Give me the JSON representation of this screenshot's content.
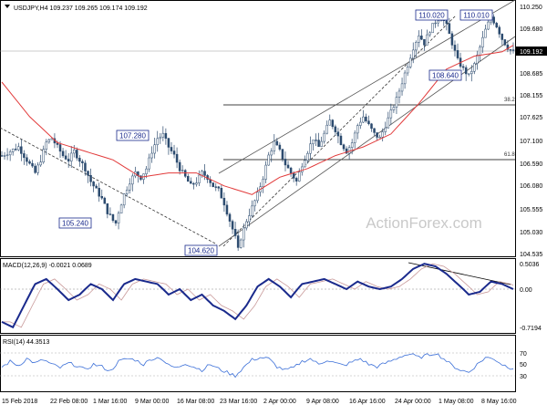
{
  "header": {
    "symbol_line": "USDJPY,H4  109.237 109.265 109.174 109.192"
  },
  "watermark": "ActionForex.com",
  "colors": {
    "candle": "#2b4a6e",
    "ma": "#e23b3b",
    "macd_main": "#1a2a8c",
    "macd_signal": "#c99a9a",
    "rsi": "#3b6fd8",
    "channel": "#606060",
    "fib_line": "#404040",
    "current_price_label_bg": "#000000"
  },
  "main_panel": {
    "price_labels": [
      "110.250",
      "109.680",
      "109.192",
      "108.685",
      "108.155",
      "107.625",
      "107.100",
      "106.590",
      "106.080",
      "105.555",
      "105.030",
      "104.535"
    ],
    "current_price": "109.192",
    "annotations": {
      "high1": "110.020",
      "high2": "110.010",
      "mid_low": "108.640",
      "swing_high": "107.280",
      "swing_low1": "105.240",
      "swing_low2": "104.620"
    },
    "fib_382": "38.2",
    "fib_618": "61.8"
  },
  "macd_panel": {
    "title": "MACD(12,26,9) -0.0021 0.0689",
    "labels": [
      "0.5036",
      "0.00",
      "-0.7194"
    ]
  },
  "rsi_panel": {
    "title": "RSI(14) 44.3513",
    "labels": [
      "70",
      "50",
      "30"
    ]
  },
  "time_axis": {
    "labels": [
      "15 Feb 2018",
      "22 Feb 08:00",
      "1 Mar 16:00",
      "9 Mar 00:00",
      "16 Mar 08:00",
      "23 Mar 16:00",
      "2 Apr 00:00",
      "9 Apr 08:00",
      "16 Apr 16:00",
      "24 Apr 00:00",
      "1 May 08:00",
      "8 May 16:00"
    ]
  },
  "chart_data": {
    "type": "candlestick",
    "symbol": "USDJPY",
    "timeframe": "H4",
    "close_path": [
      [
        0,
        106.8
      ],
      [
        3,
        106.9
      ],
      [
        6,
        107.0
      ],
      [
        8,
        106.8
      ],
      [
        10,
        106.6
      ],
      [
        12,
        106.4
      ],
      [
        14,
        106.7
      ],
      [
        16,
        107.1
      ],
      [
        18,
        107.2
      ],
      [
        20,
        107.0
      ],
      [
        22,
        106.8
      ],
      [
        24,
        106.7
      ],
      [
        26,
        106.9
      ],
      [
        28,
        106.7
      ],
      [
        30,
        106.5
      ],
      [
        32,
        106.2
      ],
      [
        34,
        106.0
      ],
      [
        36,
        105.8
      ],
      [
        38,
        105.5
      ],
      [
        40,
        105.3
      ],
      [
        41,
        105.24
      ],
      [
        42,
        105.5
      ],
      [
        44,
        105.9
      ],
      [
        46,
        106.2
      ],
      [
        48,
        106.4
      ],
      [
        50,
        106.3
      ],
      [
        52,
        106.5
      ],
      [
        54,
        106.9
      ],
      [
        56,
        107.2
      ],
      [
        58,
        107.28
      ],
      [
        60,
        107.0
      ],
      [
        62,
        106.8
      ],
      [
        64,
        106.5
      ],
      [
        66,
        106.3
      ],
      [
        68,
        106.1
      ],
      [
        70,
        106.2
      ],
      [
        72,
        106.4
      ],
      [
        74,
        106.3
      ],
      [
        76,
        106.1
      ],
      [
        78,
        106.0
      ],
      [
        80,
        105.7
      ],
      [
        82,
        105.3
      ],
      [
        84,
        104.9
      ],
      [
        85,
        104.62
      ],
      [
        86,
        104.9
      ],
      [
        88,
        105.3
      ],
      [
        90,
        105.6
      ],
      [
        92,
        105.9
      ],
      [
        94,
        106.3
      ],
      [
        96,
        106.8
      ],
      [
        98,
        107.1
      ],
      [
        100,
        106.9
      ],
      [
        102,
        106.6
      ],
      [
        104,
        106.4
      ],
      [
        106,
        106.2
      ],
      [
        108,
        106.6
      ],
      [
        110,
        106.9
      ],
      [
        112,
        107.2
      ],
      [
        114,
        107.0
      ],
      [
        116,
        107.3
      ],
      [
        118,
        107.6
      ],
      [
        120,
        107.4
      ],
      [
        122,
        107.1
      ],
      [
        124,
        106.9
      ],
      [
        126,
        107.1
      ],
      [
        128,
        107.5
      ],
      [
        130,
        107.7
      ],
      [
        132,
        107.5
      ],
      [
        134,
        107.3
      ],
      [
        136,
        107.2
      ],
      [
        138,
        107.5
      ],
      [
        140,
        107.8
      ],
      [
        142,
        108.1
      ],
      [
        144,
        108.5
      ],
      [
        146,
        108.9
      ],
      [
        148,
        109.3
      ],
      [
        150,
        109.6
      ],
      [
        152,
        109.4
      ],
      [
        154,
        109.7
      ],
      [
        156,
        109.9
      ],
      [
        158,
        110.02
      ],
      [
        160,
        109.8
      ],
      [
        162,
        109.4
      ],
      [
        164,
        109.0
      ],
      [
        166,
        108.8
      ],
      [
        168,
        108.64
      ],
      [
        170,
        108.9
      ],
      [
        172,
        109.3
      ],
      [
        174,
        109.7
      ],
      [
        176,
        110.01
      ],
      [
        178,
        109.8
      ],
      [
        180,
        109.5
      ],
      [
        182,
        109.3
      ],
      [
        184,
        109.19
      ]
    ],
    "ma_path": [
      [
        0,
        108.5
      ],
      [
        10,
        107.7
      ],
      [
        20,
        107.1
      ],
      [
        30,
        106.9
      ],
      [
        40,
        106.7
      ],
      [
        50,
        106.3
      ],
      [
        60,
        106.4
      ],
      [
        70,
        106.4
      ],
      [
        80,
        106.1
      ],
      [
        90,
        105.9
      ],
      [
        100,
        106.3
      ],
      [
        110,
        106.5
      ],
      [
        120,
        106.8
      ],
      [
        130,
        107.0
      ],
      [
        140,
        107.3
      ],
      [
        150,
        108.0
      ],
      [
        160,
        108.8
      ],
      [
        170,
        109.1
      ],
      [
        180,
        109.2
      ],
      [
        184,
        109.35
      ]
    ],
    "macd_main_path": [
      [
        0,
        -0.6
      ],
      [
        4,
        -0.7
      ],
      [
        8,
        -0.3
      ],
      [
        12,
        0.1
      ],
      [
        16,
        0.2
      ],
      [
        20,
        0.0
      ],
      [
        24,
        -0.2
      ],
      [
        28,
        -0.1
      ],
      [
        32,
        0.1
      ],
      [
        36,
        0.0
      ],
      [
        40,
        -0.2
      ],
      [
        44,
        0.1
      ],
      [
        48,
        0.2
      ],
      [
        52,
        0.15
      ],
      [
        56,
        0.1
      ],
      [
        60,
        -0.1
      ],
      [
        64,
        0.0
      ],
      [
        68,
        -0.2
      ],
      [
        72,
        -0.1
      ],
      [
        76,
        -0.3
      ],
      [
        80,
        -0.4
      ],
      [
        84,
        -0.55
      ],
      [
        88,
        -0.3
      ],
      [
        92,
        0.05
      ],
      [
        96,
        0.2
      ],
      [
        100,
        0.05
      ],
      [
        104,
        -0.15
      ],
      [
        108,
        0.1
      ],
      [
        112,
        0.15
      ],
      [
        116,
        0.2
      ],
      [
        120,
        0.1
      ],
      [
        124,
        0.0
      ],
      [
        128,
        0.15
      ],
      [
        132,
        0.05
      ],
      [
        136,
        0.0
      ],
      [
        140,
        0.05
      ],
      [
        144,
        0.2
      ],
      [
        148,
        0.4
      ],
      [
        152,
        0.5
      ],
      [
        156,
        0.45
      ],
      [
        160,
        0.3
      ],
      [
        164,
        0.1
      ],
      [
        168,
        -0.1
      ],
      [
        172,
        -0.05
      ],
      [
        176,
        0.15
      ],
      [
        180,
        0.1
      ],
      [
        184,
        0.0
      ]
    ],
    "rsi_path": [
      [
        0,
        45
      ],
      [
        3,
        55
      ],
      [
        6,
        48
      ],
      [
        9,
        60
      ],
      [
        12,
        52
      ],
      [
        15,
        58
      ],
      [
        18,
        50
      ],
      [
        21,
        44
      ],
      [
        24,
        52
      ],
      [
        27,
        48
      ],
      [
        30,
        40
      ],
      [
        33,
        50
      ],
      [
        36,
        46
      ],
      [
        39,
        38
      ],
      [
        42,
        55
      ],
      [
        45,
        60
      ],
      [
        48,
        58
      ],
      [
        51,
        50
      ],
      [
        54,
        60
      ],
      [
        57,
        62
      ],
      [
        60,
        48
      ],
      [
        63,
        44
      ],
      [
        66,
        52
      ],
      [
        69,
        46
      ],
      [
        72,
        40
      ],
      [
        75,
        50
      ],
      [
        78,
        42
      ],
      [
        81,
        36
      ],
      [
        84,
        30
      ],
      [
        87,
        45
      ],
      [
        90,
        58
      ],
      [
        93,
        62
      ],
      [
        96,
        60
      ],
      [
        99,
        46
      ],
      [
        102,
        40
      ],
      [
        105,
        44
      ],
      [
        108,
        55
      ],
      [
        111,
        60
      ],
      [
        114,
        50
      ],
      [
        117,
        58
      ],
      [
        120,
        52
      ],
      [
        123,
        48
      ],
      [
        126,
        54
      ],
      [
        129,
        60
      ],
      [
        132,
        50
      ],
      [
        135,
        46
      ],
      [
        138,
        52
      ],
      [
        141,
        58
      ],
      [
        144,
        65
      ],
      [
        147,
        68
      ],
      [
        150,
        62
      ],
      [
        153,
        66
      ],
      [
        156,
        70
      ],
      [
        159,
        60
      ],
      [
        162,
        48
      ],
      [
        165,
        40
      ],
      [
        168,
        36
      ],
      [
        171,
        50
      ],
      [
        174,
        62
      ],
      [
        177,
        60
      ],
      [
        180,
        50
      ],
      [
        183,
        44
      ]
    ]
  }
}
